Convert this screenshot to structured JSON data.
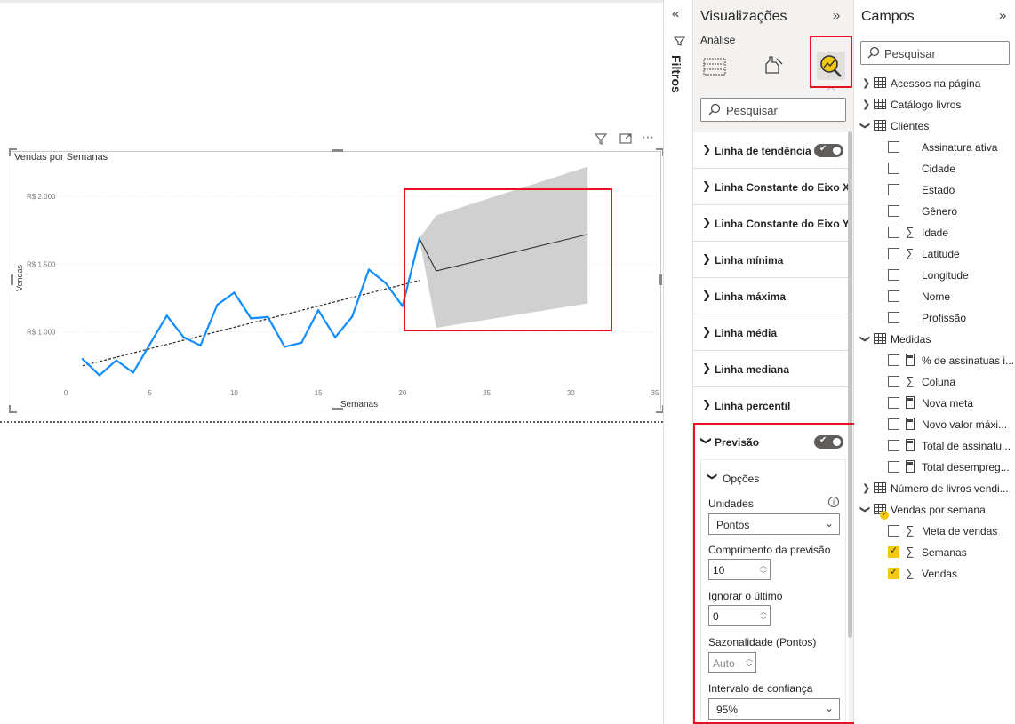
{
  "visual": {
    "title": "Vendas por Semanas",
    "header_icons": [
      "filter-icon",
      "focus-mode-icon",
      "more-options-icon"
    ]
  },
  "chart_data": {
    "type": "line",
    "title": "Vendas por Semanas",
    "xlabel": "Semanas",
    "ylabel": "Vendas",
    "xlim": [
      0,
      35
    ],
    "ylim": [
      650,
      2250
    ],
    "x_ticks": [
      "0",
      "5",
      "10",
      "15",
      "20",
      "25",
      "30",
      "35"
    ],
    "x_tick_values": [
      0,
      5,
      10,
      15,
      20,
      25,
      30,
      35
    ],
    "y_ticks": [
      "R$ 1.000",
      "R$ 1.500",
      "R$ 2.000"
    ],
    "y_tick_values": [
      1000,
      1500,
      2000
    ],
    "grid": true,
    "series": [
      {
        "x": [
          1,
          2,
          3,
          4,
          5,
          6,
          7,
          8,
          9,
          10,
          11,
          12,
          13,
          14,
          15,
          16,
          17,
          18,
          19,
          20,
          21
        ],
        "values": [
          800,
          680,
          790,
          700,
          910,
          1120,
          960,
          900,
          1200,
          1290,
          1100,
          1110,
          890,
          920,
          1160,
          960,
          1110,
          1460,
          1360,
          1190,
          1690
        ],
        "color": "#118DFF"
      }
    ],
    "trend_line": {
      "x": [
        1,
        21
      ],
      "values": [
        750,
        1380
      ],
      "style": "dashed",
      "color": "#252423"
    },
    "forecast": {
      "x": [
        21,
        22,
        31
      ],
      "values": [
        1690,
        1450,
        1720
      ],
      "upper": [
        1690,
        1860,
        2220
      ],
      "lower": [
        1690,
        1030,
        1210
      ],
      "line_color": "#252423",
      "band_color": "#d0d0d0"
    }
  },
  "filters_pane": {
    "label": "Filtros"
  },
  "visualizations_pane": {
    "title": "Visualizações",
    "subtitle": "Análise",
    "tabs": [
      "fields-tab-icon",
      "format-tab-icon",
      "analytics-tab-icon"
    ],
    "search_placeholder": "Pesquisar",
    "sections": [
      {
        "label": "Linha de tendência",
        "toggle": true
      },
      {
        "label": "Linha Constante do Eixo X"
      },
      {
        "label": "Linha Constante do Eixo Y"
      },
      {
        "label": "Linha mínima"
      },
      {
        "label": "Linha máxima"
      },
      {
        "label": "Linha média"
      },
      {
        "label": "Linha mediana"
      },
      {
        "label": "Linha percentil"
      }
    ],
    "forecast": {
      "label": "Previsão",
      "toggle": true,
      "options_label": "Opções",
      "units_label": "Unidades",
      "units_value": "Pontos",
      "length_label": "Comprimento da previsão",
      "length_value": "10",
      "ignore_label": "Ignorar o último",
      "ignore_value": "0",
      "seasonality_label": "Sazonalidade (Pontos)",
      "seasonality_value": "Auto",
      "confidence_label": "Intervalo de confiança",
      "confidence_value": "95%"
    }
  },
  "fields_pane": {
    "title": "Campos",
    "search_placeholder": "Pesquisar",
    "acessos": "Acessos na página",
    "catalogo": "Catálogo livros",
    "clientes": "Clientes",
    "clientes_fields": [
      "Assinatura ativa",
      "Cidade",
      "Estado",
      "Gênero",
      "Idade",
      "Latitude",
      "Longitude",
      "Nome",
      "Profissão"
    ],
    "medidas": "Medidas",
    "medidas_fields": [
      "% de assinatuas i...",
      "Coluna",
      "Nova meta",
      "Novo valor máxi...",
      "Total de assinatu...",
      "Total desempreg..."
    ],
    "numero_livros": "Número de livros vendi...",
    "vendas_semana": "Vendas por semana",
    "vendas_fields": [
      "Meta de vendas",
      "Semanas",
      "Vendas"
    ]
  },
  "colors": {
    "highlight_box": "#e81123",
    "series": "#118DFF",
    "check": "#f2c811"
  }
}
